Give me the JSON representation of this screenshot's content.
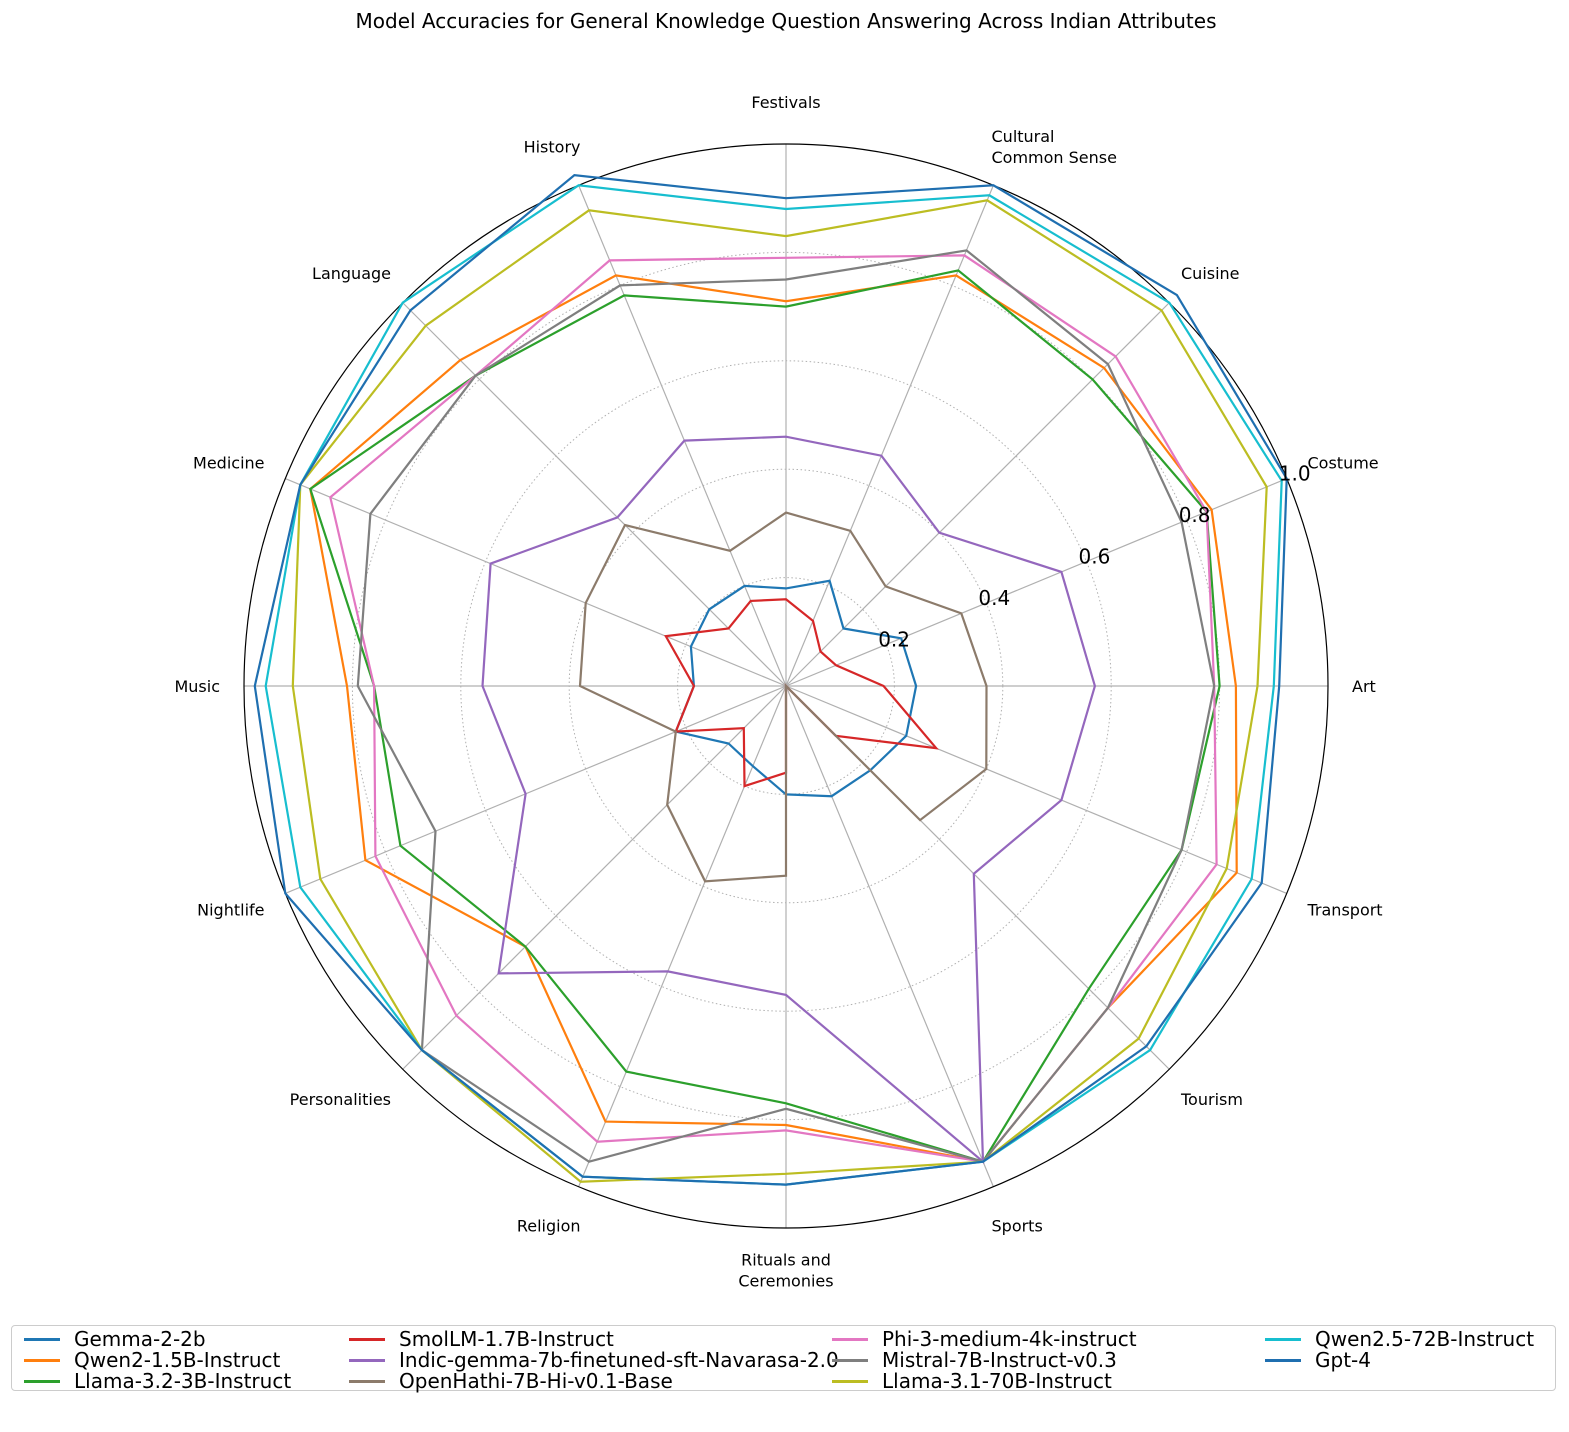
{
  "chart_data": {
    "type": "radar",
    "title": "Model Accuracies for General Knowledge Question Answering Across Indian Attributes",
    "categories": [
      "Art",
      "Costume",
      "Cuisine",
      "Cultural\nCommon Sense",
      "Festivals",
      "History",
      "Language",
      "Medicine",
      "Music",
      "Nightlife",
      "Personalities",
      "Religion",
      "Rituals and\nCeremonies",
      "Sports",
      "Tourism",
      "Transport"
    ],
    "rlim": [
      0,
      1.0
    ],
    "rticks": [
      0.2,
      0.4,
      0.6,
      0.8,
      1.0
    ],
    "rtick_labels": [
      "0.2",
      "0.4",
      "0.6",
      "0.8",
      "1.0"
    ],
    "grid": true,
    "legend_position": "bottom",
    "series": [
      {
        "name": "Gemma-2-2b",
        "color": "#1f77b4",
        "values": [
          0.24,
          0.23,
          0.15,
          0.21,
          0.18,
          0.2,
          0.2,
          0.19,
          0.17,
          0.22,
          0.15,
          0.16,
          0.2,
          0.22,
          0.22,
          0.24
        ]
      },
      {
        "name": "Qwen2-1.5B-Instruct",
        "color": "#ff7f0e",
        "values": [
          0.83,
          0.85,
          0.83,
          0.82,
          0.71,
          0.82,
          0.85,
          0.95,
          0.81,
          0.84,
          0.68,
          0.87,
          0.81,
          0.95,
          0.84,
          0.9
        ]
      },
      {
        "name": "Llama-3.2-3B-Instruct",
        "color": "#2ca02c",
        "values": [
          0.8,
          0.84,
          0.8,
          0.83,
          0.7,
          0.78,
          0.81,
          0.95,
          0.76,
          0.77,
          0.68,
          0.77,
          0.77,
          0.95,
          0.79,
          0.79
        ]
      },
      {
        "name": "SmolLM-1.7B-Instruct",
        "color": "#d62728",
        "values": [
          0.18,
          0.1,
          0.09,
          0.13,
          0.16,
          0.17,
          0.15,
          0.24,
          0.17,
          0.22,
          0.11,
          0.2,
          0.16,
          0.0,
          0.13,
          0.3
        ]
      },
      {
        "name": "Indic-gemma-7b-finetuned-sft-Navarasa-2.0",
        "color": "#9467bd",
        "values": [
          0.57,
          0.55,
          0.4,
          0.46,
          0.46,
          0.49,
          0.44,
          0.59,
          0.56,
          0.52,
          0.75,
          0.57,
          0.57,
          0.95,
          0.49,
          0.55
        ]
      },
      {
        "name": "OpenHathi-7B-Hi-v0.1-Base",
        "color": "#8c7b6b",
        "values": [
          0.37,
          0.35,
          0.26,
          0.31,
          0.32,
          0.27,
          0.42,
          0.4,
          0.38,
          0.22,
          0.31,
          0.39,
          0.35,
          0.0,
          0.35,
          0.4
        ]
      },
      {
        "name": "Phi-3-medium-4k-instruct",
        "color": "#e377c2",
        "values": [
          0.79,
          0.84,
          0.86,
          0.86,
          0.79,
          0.85,
          0.81,
          0.91,
          0.76,
          0.82,
          0.86,
          0.91,
          0.82,
          0.95,
          0.84,
          0.86
        ]
      },
      {
        "name": "Mistral-7B-Instruct-v0.3",
        "color": "#7f7f7f",
        "values": [
          0.79,
          0.79,
          0.84,
          0.87,
          0.75,
          0.8,
          0.81,
          0.83,
          0.79,
          0.7,
          0.95,
          0.95,
          0.78,
          0.95,
          0.84,
          0.79
        ]
      },
      {
        "name": "Llama-3.1-70B-Instruct",
        "color": "#bcbd22",
        "values": [
          0.87,
          0.96,
          0.98,
          0.97,
          0.83,
          0.95,
          0.94,
          0.97,
          0.91,
          0.93,
          0.95,
          0.99,
          0.9,
          0.95,
          0.92,
          0.88
        ]
      },
      {
        "name": "Qwen2.5-72B-Instruct",
        "color": "#17becf",
        "values": [
          0.9,
          0.99,
          1.0,
          0.98,
          0.88,
          1.0,
          1.0,
          0.97,
          0.96,
          0.97,
          0.95,
          0.98,
          0.92,
          0.95,
          0.95,
          0.93
        ]
      },
      {
        "name": "Gpt-4",
        "color": "#1f6fb0",
        "values": [
          0.91,
          1.0,
          1.02,
          1.0,
          0.9,
          1.02,
          0.98,
          0.97,
          0.98,
          1.0,
          0.95,
          0.98,
          0.92,
          0.95,
          0.94,
          0.95
        ]
      }
    ]
  }
}
